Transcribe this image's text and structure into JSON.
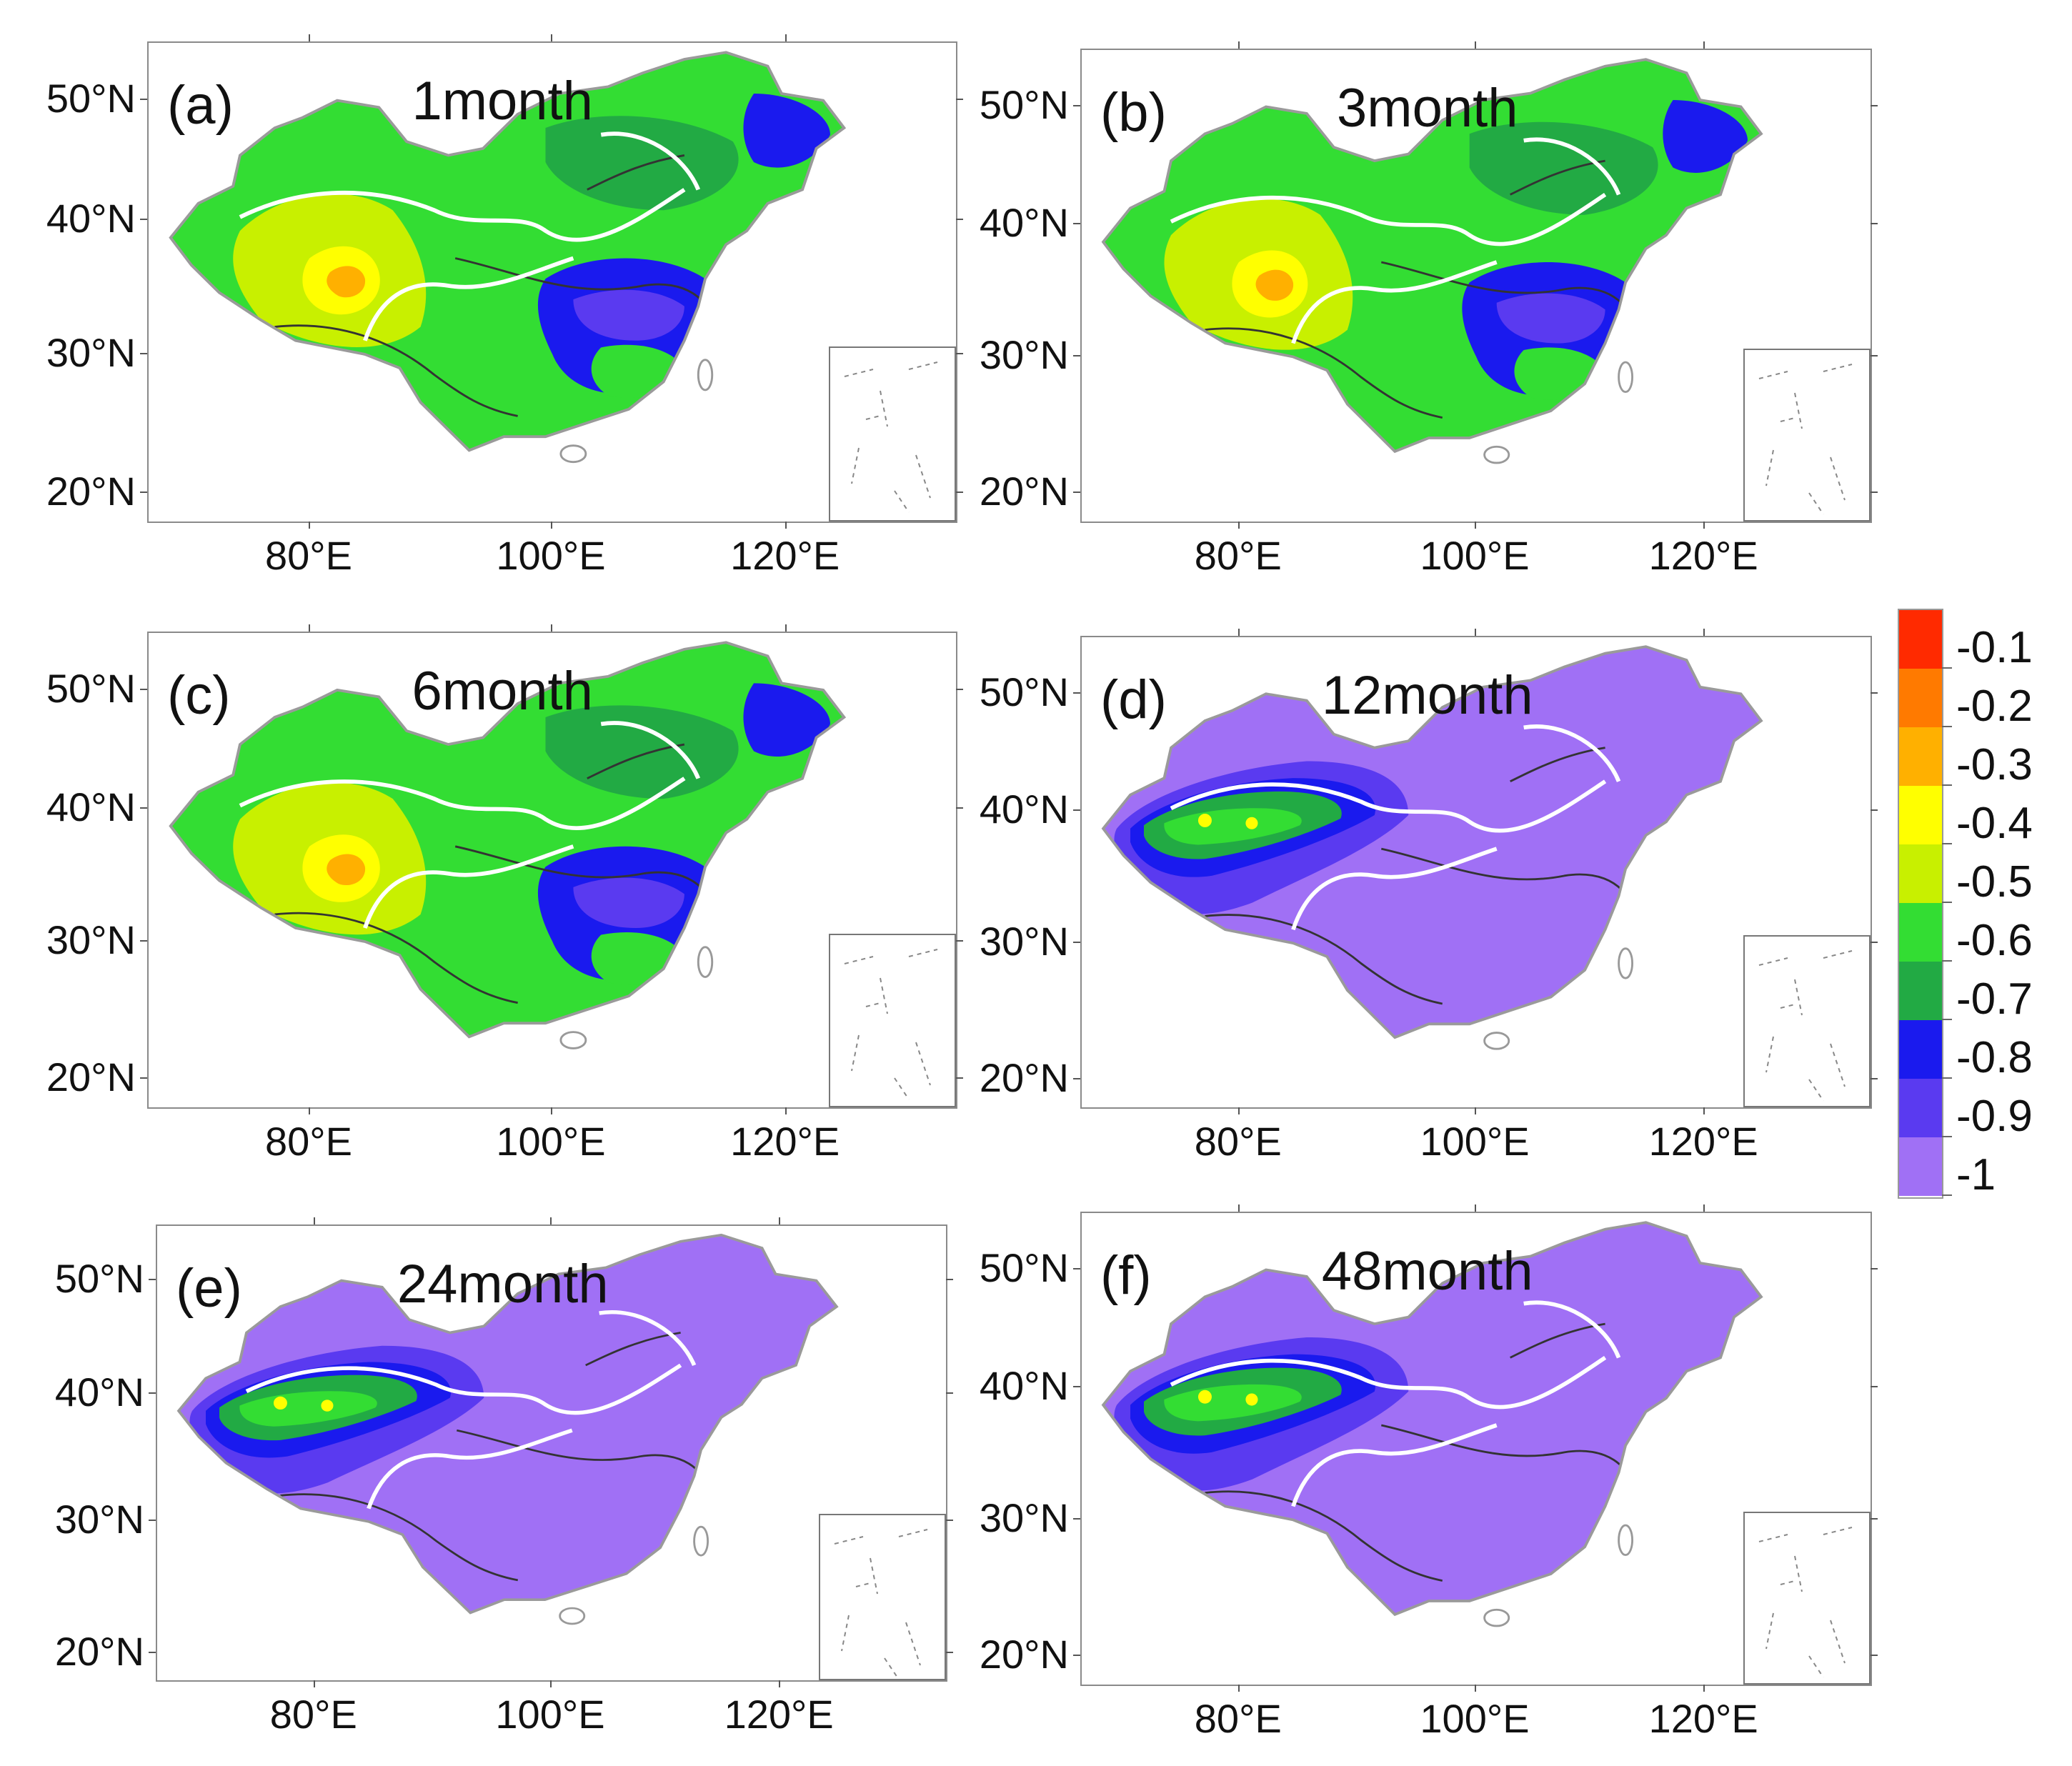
{
  "figure": {
    "panels": [
      {
        "label": "(a)",
        "title": "1month",
        "scheme": "mixed-green"
      },
      {
        "label": "(b)",
        "title": "3month",
        "scheme": "mixed-green"
      },
      {
        "label": "(c)",
        "title": "6month",
        "scheme": "mixed-green"
      },
      {
        "label": "(d)",
        "title": "12month",
        "scheme": "purple"
      },
      {
        "label": "(e)",
        "title": "24month",
        "scheme": "purple"
      },
      {
        "label": "(f)",
        "title": "48month",
        "scheme": "purple"
      }
    ],
    "axes": {
      "lat_labels": [
        "50°N",
        "40°N",
        "30°N",
        "20°N"
      ],
      "lon_labels": [
        "80°E",
        "100°E",
        "120°E"
      ]
    },
    "colorbar": {
      "labels": [
        "-0.1",
        "-0.2",
        "-0.3",
        "-0.4",
        "-0.5",
        "-0.6",
        "-0.7",
        "-0.8",
        "-0.9",
        "-1"
      ],
      "colors": [
        "#ff2a00",
        "#ff7a00",
        "#ffb000",
        "#ffff00",
        "#c8f000",
        "#33dd33",
        "#22aa44",
        "#1a1aee",
        "#5a3af0",
        "#a070f5"
      ]
    }
  }
}
